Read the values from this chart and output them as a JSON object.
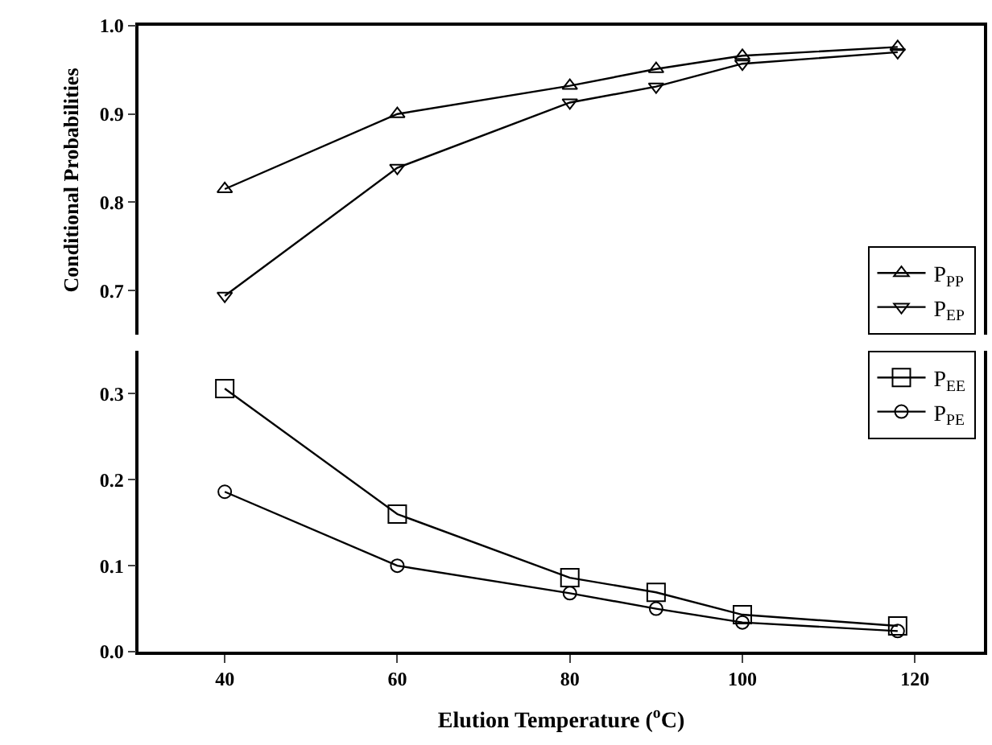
{
  "chart_data": [
    {
      "type": "line",
      "ylabel": "Conditional Probabilities",
      "x": [
        40,
        60,
        80,
        90,
        100,
        118
      ],
      "xlim": [
        30,
        128
      ],
      "xticks": [
        40,
        60,
        80,
        100,
        120
      ],
      "ylim": [
        0.65,
        1.0
      ],
      "yticks": [
        0.7,
        0.8,
        0.9,
        {
          "value": 1,
          "label": "1.0"
        }
      ],
      "tick_labels": "y",
      "grid": false,
      "legend": "bottom right",
      "line_style": "solid",
      "series": [
        {
          "name": "P$_{PP}$",
          "color": "#000000",
          "marker": "triangle",
          "values": [
            0.815,
            0.9,
            0.932,
            0.951,
            0.966,
            0.976
          ]
        },
        {
          "name": "P$_{EP}$",
          "color": "#000000",
          "marker": "triangle-down",
          "values": [
            0.694,
            0.839,
            0.913,
            0.931,
            0.957,
            0.97
          ]
        }
      ]
    },
    {
      "type": "line",
      "xlabel": "Elution Temperature ($^{o}$C)",
      "x": [
        40,
        60,
        80,
        90,
        100,
        118
      ],
      "xlim": [
        30,
        128
      ],
      "xticks": [
        40,
        60,
        80,
        100,
        120
      ],
      "ylim": [
        0,
        0.35
      ],
      "yticks": [
        {
          "value": 0,
          "label": "0.0"
        },
        0.1,
        0.2,
        0.3
      ],
      "grid": false,
      "legend": "top right",
      "line_style": "solid",
      "series": [
        {
          "name": "P$_{EE}$",
          "color": "#000000",
          "marker": "square",
          "values": [
            0.306,
            0.16,
            0.086,
            0.069,
            0.043,
            0.03
          ]
        },
        {
          "name": "P$_{PE}$",
          "color": "#000000",
          "marker": "circle",
          "values": [
            0.186,
            0.1,
            0.068,
            0.05,
            0.034,
            0.024
          ]
        }
      ]
    }
  ]
}
